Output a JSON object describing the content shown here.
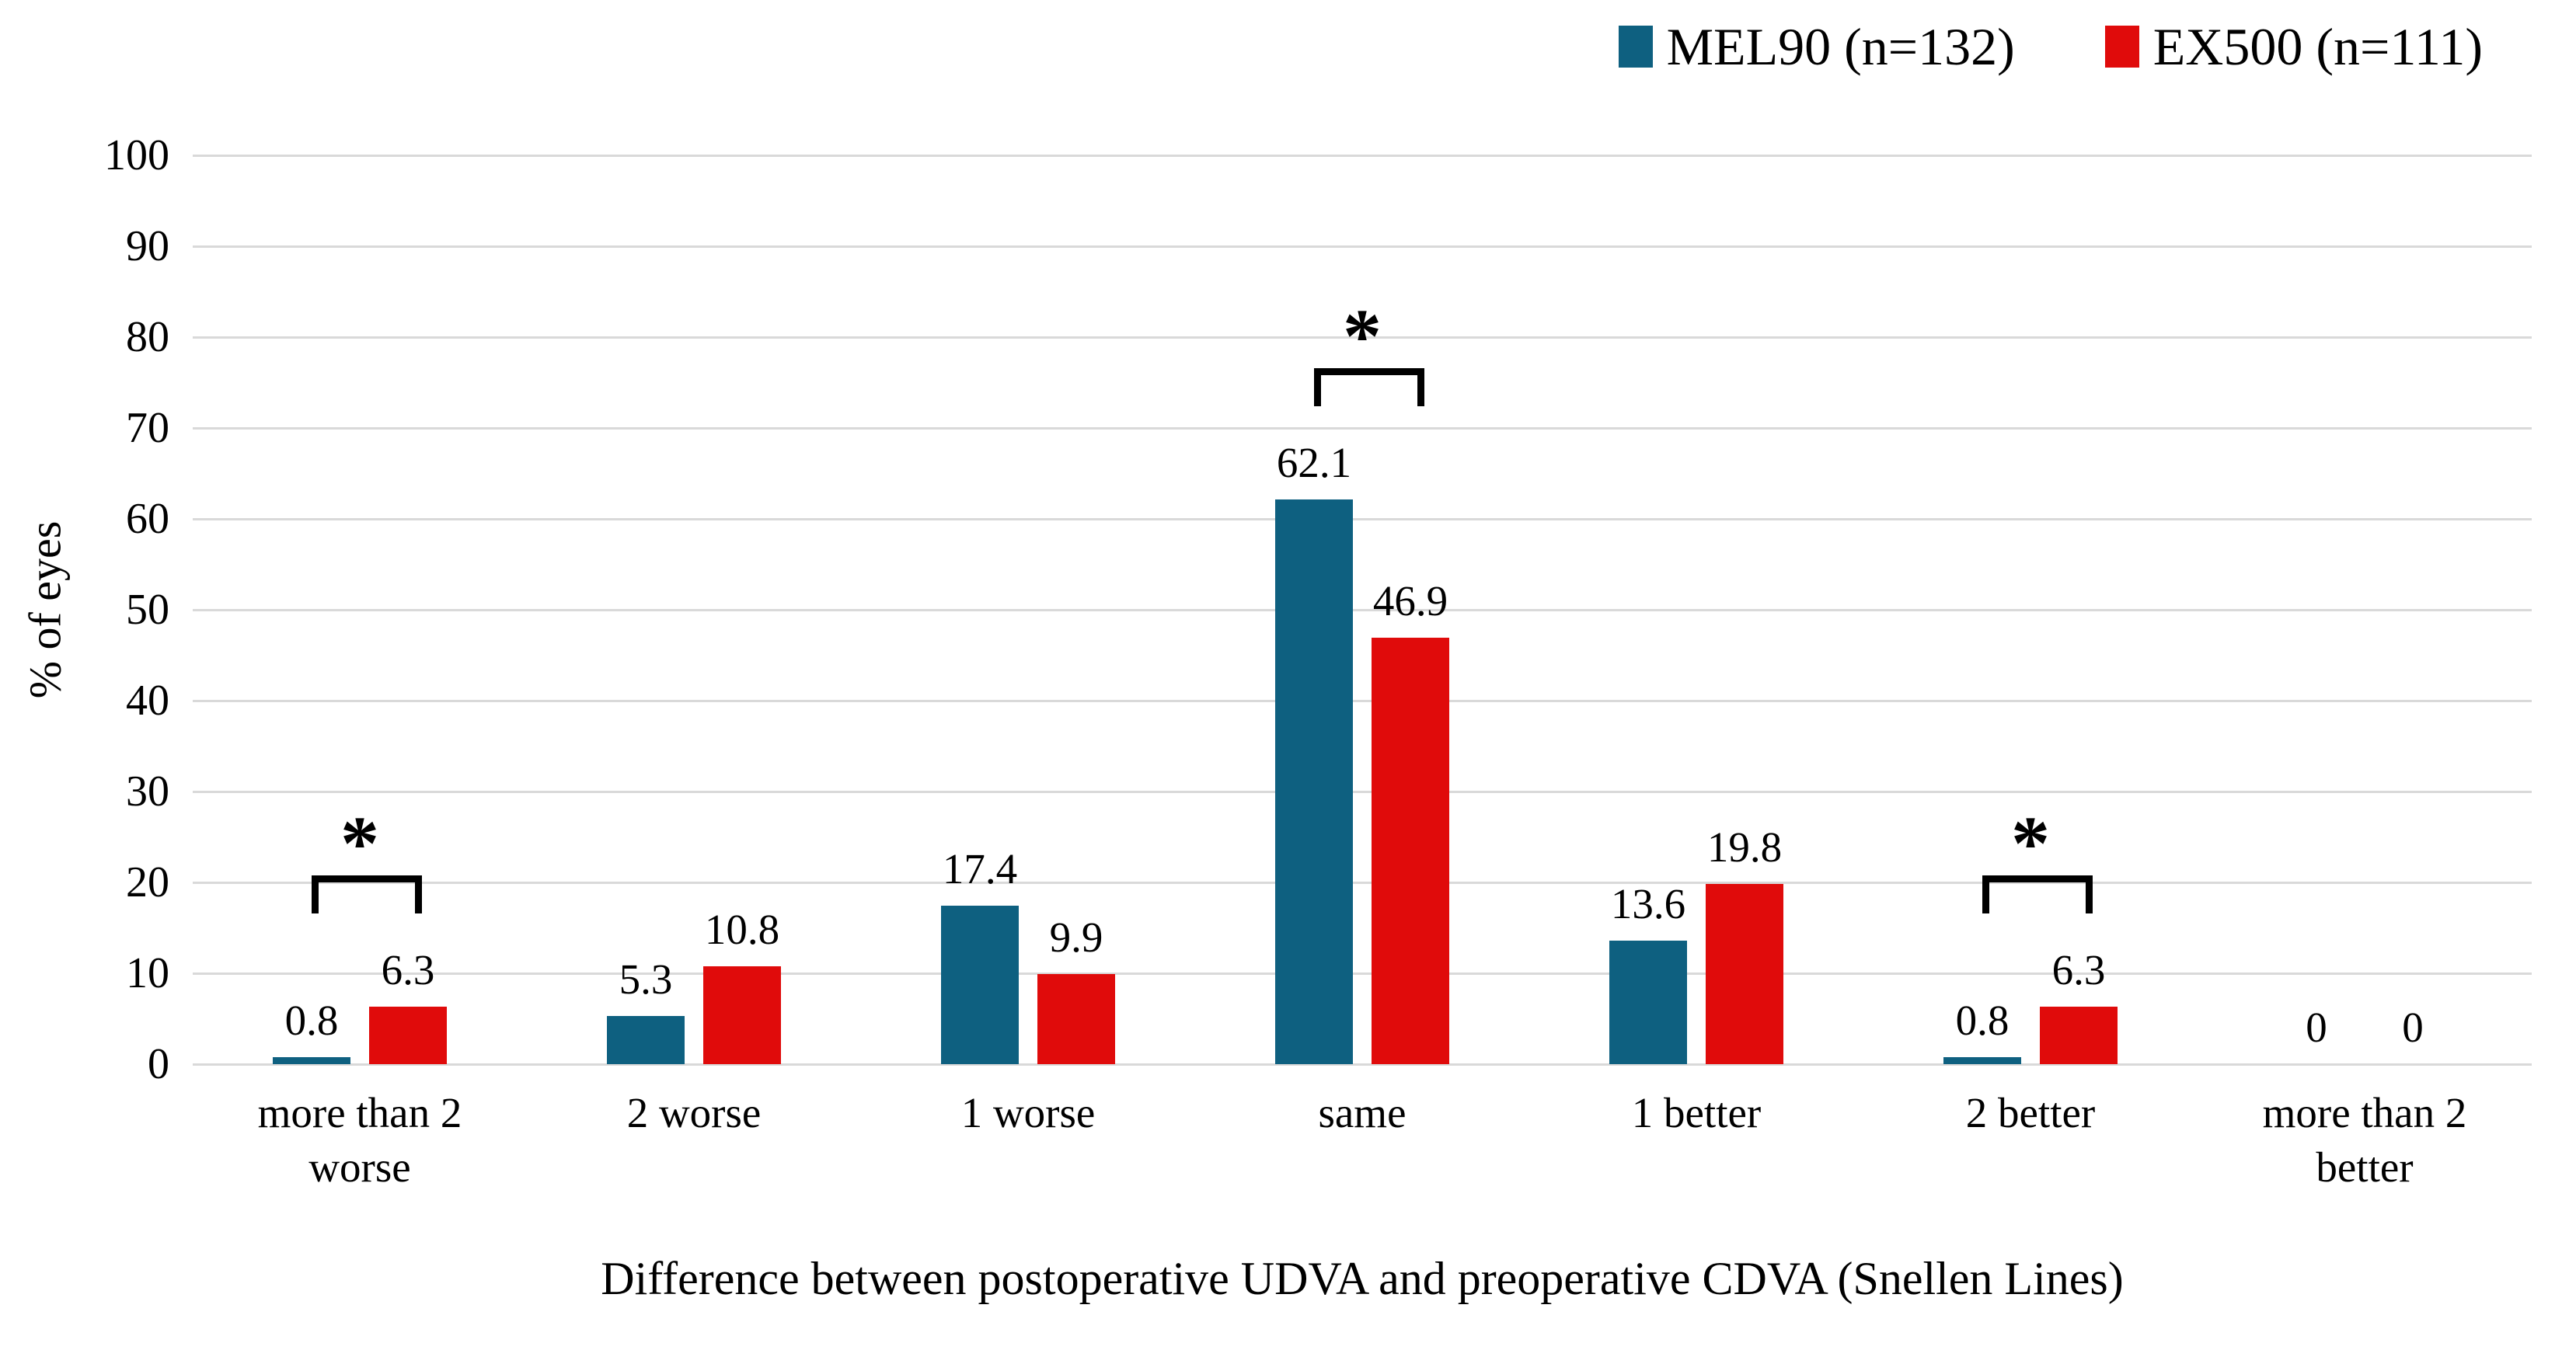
{
  "legend": {
    "items": [
      {
        "label": "MEL90 (n=132)",
        "color": "#0e6080"
      },
      {
        "label": "EX500 (n=111)",
        "color": "#e00b0b"
      }
    ]
  },
  "chart_data": {
    "type": "bar",
    "title": "",
    "xlabel": "Difference between postoperative UDVA and preoperative CDVA (Snellen Lines)",
    "ylabel": "% of eyes",
    "ylim": [
      0,
      100
    ],
    "yticks": [
      0,
      10,
      20,
      30,
      40,
      50,
      60,
      70,
      80,
      90,
      100
    ],
    "grid": true,
    "legend_position": "top-right",
    "categories": [
      "more than 2 worse",
      "2 worse",
      "1 worse",
      "same",
      "1 better",
      "2 better",
      "more than 2 better"
    ],
    "series": [
      {
        "name": "MEL90 (n=132)",
        "color": "#0e6080",
        "values": [
          0.8,
          5.3,
          17.4,
          62.1,
          13.6,
          0.8,
          0
        ]
      },
      {
        "name": "EX500 (n=111)",
        "color": "#e00b0b",
        "values": [
          6.3,
          10.8,
          9.9,
          46.9,
          19.8,
          6.3,
          0
        ]
      }
    ],
    "significance_marker": "*",
    "significant_categories": [
      "more than 2 worse",
      "same",
      "2 better"
    ],
    "gridline_color": "#d9d9d9"
  }
}
